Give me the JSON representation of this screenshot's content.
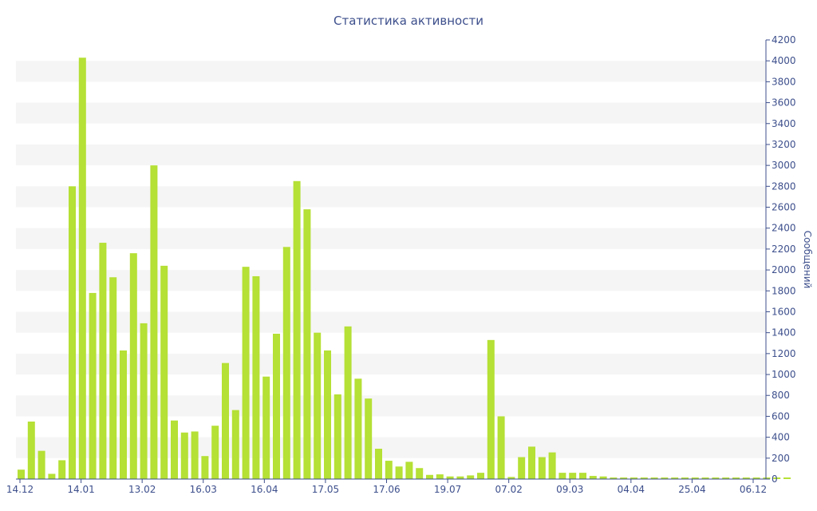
{
  "chart_data": {
    "type": "bar",
    "title": "Статистика активности",
    "ylabel": "Сообщений",
    "ylim": [
      0,
      4200
    ],
    "y_tick_step": 200,
    "x_tick_labels": [
      "14.12",
      "14.01",
      "13.02",
      "16.03",
      "16.04",
      "17.05",
      "17.06",
      "19.07",
      "07.02",
      "09.03",
      "04.04",
      "25.04",
      "06.12"
    ],
    "grid": "horizontal bands",
    "colors": {
      "bar": "#b5e035",
      "band": "#f5f5f5",
      "text": "#3d4f8c",
      "axis": "#3d4f8c"
    },
    "values": [
      90,
      550,
      270,
      50,
      180,
      2800,
      4030,
      1780,
      2260,
      1930,
      1230,
      2160,
      1490,
      3000,
      2040,
      560,
      445,
      455,
      220,
      510,
      1110,
      660,
      2030,
      1940,
      980,
      1390,
      2220,
      2850,
      2580,
      1400,
      1230,
      810,
      1460,
      960,
      770,
      290,
      175,
      120,
      165,
      105,
      40,
      45,
      25,
      25,
      35,
      60,
      1330,
      600,
      20,
      210,
      310,
      210,
      255,
      60,
      60,
      60,
      30,
      25,
      15,
      15,
      15,
      15,
      15,
      15,
      15,
      15,
      15,
      15,
      15,
      15,
      15,
      15,
      15,
      15,
      15,
      15
    ]
  }
}
